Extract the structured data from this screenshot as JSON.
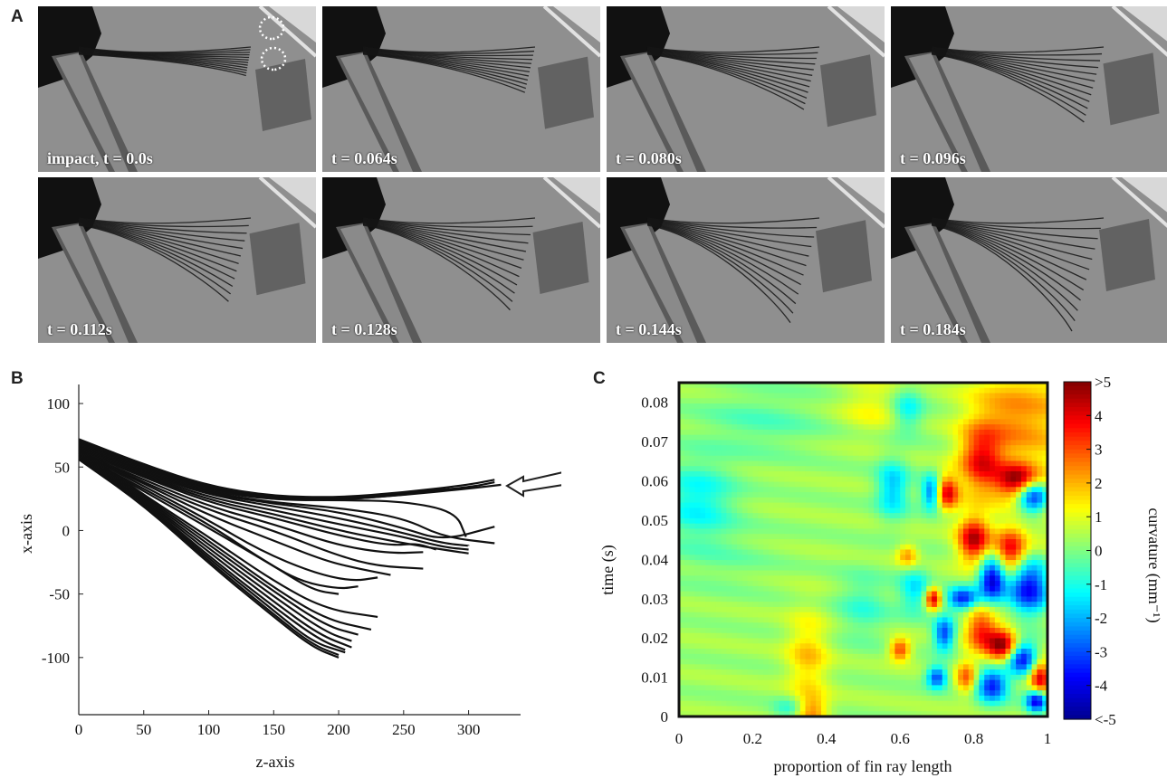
{
  "figure": {
    "panel_a": {
      "letter": "A",
      "frames": [
        {
          "caption": "impact, t = 0.0s",
          "row": 0,
          "col": 0,
          "phase": 0.0
        },
        {
          "caption": "t = 0.064s",
          "row": 0,
          "col": 1,
          "phase": 0.2
        },
        {
          "caption": "t = 0.080s",
          "row": 0,
          "col": 2,
          "phase": 0.4
        },
        {
          "caption": "t = 0.096s",
          "row": 0,
          "col": 3,
          "phase": 0.55
        },
        {
          "caption": "t = 0.112s",
          "row": 1,
          "col": 0,
          "phase": 0.65
        },
        {
          "caption": "t = 0.128s",
          "row": 1,
          "col": 1,
          "phase": 0.75
        },
        {
          "caption": "t = 0.144s",
          "row": 1,
          "col": 2,
          "phase": 0.9
        },
        {
          "caption": "t = 0.184s",
          "row": 1,
          "col": 3,
          "phase": 1.0
        }
      ]
    },
    "panel_b": {
      "letter": "B"
    },
    "panel_c": {
      "letter": "C"
    }
  },
  "chart_data": [
    {
      "panel": "B",
      "type": "line",
      "xlabel": "z-axis",
      "ylabel": "x-axis",
      "xlim": [
        0,
        340
      ],
      "ylim": [
        -145,
        115
      ],
      "xticks": [
        0,
        50,
        100,
        150,
        200,
        250,
        300
      ],
      "yticks": [
        100,
        50,
        0,
        -50,
        -100
      ],
      "annotation": "arrow pointing left at upper ray tips (impact location)",
      "series": [
        {
          "x": [
            0,
            50,
            100,
            150,
            200,
            250,
            300,
            320
          ],
          "y": [
            72,
            52,
            35,
            27,
            26,
            30,
            36,
            40
          ]
        },
        {
          "x": [
            0,
            50,
            100,
            150,
            200,
            250,
            300,
            320
          ],
          "y": [
            71,
            51,
            34,
            26,
            25,
            29,
            34,
            38
          ]
        },
        {
          "x": [
            0,
            50,
            100,
            150,
            200,
            250,
            300,
            325
          ],
          "y": [
            70,
            50,
            33,
            25,
            24,
            28,
            33,
            36
          ]
        },
        {
          "x": [
            0,
            50,
            100,
            150,
            200,
            250,
            290
          ],
          "y": [
            69,
            49,
            32,
            25,
            25,
            30,
            33
          ]
        },
        {
          "x": [
            0,
            50,
            100,
            150,
            200,
            250,
            300,
            305
          ],
          "y": [
            68,
            48,
            32,
            24,
            24,
            28,
            34,
            35
          ]
        },
        {
          "x": [
            0,
            50,
            100,
            150,
            200,
            250,
            290,
            298
          ],
          "y": [
            68,
            48,
            31,
            24,
            24,
            23,
            15,
            -5
          ]
        },
        {
          "x": [
            0,
            50,
            100,
            150,
            200,
            250,
            280,
            320
          ],
          "y": [
            67,
            47,
            30,
            22,
            18,
            10,
            -5,
            -10
          ]
        },
        {
          "x": [
            0,
            50,
            100,
            150,
            200,
            250,
            280,
            320
          ],
          "y": [
            66,
            46,
            29,
            21,
            15,
            2,
            -8,
            3
          ]
        },
        {
          "x": [
            0,
            50,
            100,
            150,
            200,
            250,
            280,
            300
          ],
          "y": [
            66,
            45,
            28,
            19,
            10,
            -2,
            -10,
            -12
          ]
        },
        {
          "x": [
            0,
            50,
            100,
            150,
            200,
            250,
            280,
            300
          ],
          "y": [
            65,
            44,
            26,
            16,
            5,
            -5,
            -13,
            -15
          ]
        },
        {
          "x": [
            0,
            50,
            100,
            150,
            200,
            250,
            280,
            300
          ],
          "y": [
            64,
            43,
            24,
            13,
            0,
            -10,
            -15,
            -18
          ]
        },
        {
          "x": [
            0,
            50,
            100,
            150,
            200,
            240,
            260,
            275
          ],
          "y": [
            63,
            42,
            22,
            10,
            -4,
            -12,
            -10,
            -15
          ]
        },
        {
          "x": [
            0,
            50,
            100,
            150,
            200,
            240,
            265
          ],
          "y": [
            62,
            40,
            19,
            5,
            -12,
            -18,
            -17
          ]
        },
        {
          "x": [
            0,
            50,
            100,
            150,
            200,
            230,
            265
          ],
          "y": [
            62,
            38,
            16,
            0,
            -20,
            -28,
            -30
          ]
        },
        {
          "x": [
            0,
            50,
            100,
            150,
            190,
            215,
            240
          ],
          "y": [
            61,
            37,
            12,
            -8,
            -24,
            -30,
            -35
          ]
        },
        {
          "x": [
            0,
            50,
            100,
            140,
            180,
            210,
            230
          ],
          "y": [
            61,
            35,
            8,
            -16,
            -33,
            -40,
            -37
          ]
        },
        {
          "x": [
            0,
            50,
            100,
            140,
            170,
            200,
            215
          ],
          "y": [
            60,
            33,
            5,
            -22,
            -40,
            -46,
            -44
          ]
        },
        {
          "x": [
            0,
            50,
            100,
            150,
            180,
            200
          ],
          "y": [
            60,
            31,
            2,
            -28,
            -47,
            -50
          ]
        },
        {
          "x": [
            0,
            50,
            100,
            150,
            190,
            230
          ],
          "y": [
            64,
            28,
            -5,
            -40,
            -62,
            -68
          ]
        },
        {
          "x": [
            0,
            50,
            100,
            150,
            190,
            225
          ],
          "y": [
            63,
            27,
            -8,
            -45,
            -70,
            -78
          ]
        },
        {
          "x": [
            0,
            50,
            100,
            150,
            190,
            215
          ],
          "y": [
            62,
            26,
            -11,
            -48,
            -75,
            -82
          ]
        },
        {
          "x": [
            0,
            50,
            100,
            150,
            190,
            210
          ],
          "y": [
            61,
            25,
            -14,
            -52,
            -80,
            -87
          ]
        },
        {
          "x": [
            0,
            50,
            100,
            150,
            185,
            210
          ],
          "y": [
            60,
            24,
            -17,
            -56,
            -82,
            -92
          ]
        },
        {
          "x": [
            0,
            50,
            100,
            150,
            185,
            205
          ],
          "y": [
            59,
            23,
            -20,
            -60,
            -86,
            -94
          ]
        },
        {
          "x": [
            0,
            50,
            100,
            150,
            180,
            205
          ],
          "y": [
            58,
            22,
            -22,
            -63,
            -88,
            -96
          ]
        },
        {
          "x": [
            0,
            50,
            100,
            150,
            180,
            200
          ],
          "y": [
            57,
            21,
            -24,
            -66,
            -90,
            -98
          ]
        },
        {
          "x": [
            0,
            50,
            100,
            150,
            180,
            200
          ],
          "y": [
            56,
            20,
            -26,
            -68,
            -92,
            -100
          ]
        }
      ]
    },
    {
      "panel": "C",
      "type": "heatmap",
      "xlabel": "proportion of fin ray length",
      "ylabel": "time (s)",
      "colorbar_label": "curvature (mm⁻¹)",
      "xlim": [
        0,
        1
      ],
      "ylim": [
        0,
        0.085
      ],
      "xticks": [
        "0",
        "0.2",
        "0.4",
        "0.6",
        "0.8",
        "1"
      ],
      "yticks": [
        "0.08",
        "0.07",
        "0.06",
        "0.05",
        "0.04",
        "0.03",
        "0.02",
        "0.01",
        "0"
      ],
      "clim": [
        -5,
        5
      ],
      "cticks": [
        ">5",
        "4",
        "3",
        "2",
        "1",
        "0",
        "-1",
        "-2",
        "-3",
        "-4",
        "<-5"
      ],
      "colors": [
        "#00008f",
        "#0000ff",
        "#0080ff",
        "#00ffff",
        "#80ff80",
        "#ffff00",
        "#ff8000",
        "#ff0000",
        "#800000"
      ],
      "background_value": 0.3,
      "blobs": [
        {
          "x": 0.05,
          "t": 0.055,
          "v": -1.6,
          "sx": 0.07,
          "st": 0.007
        },
        {
          "x": 0.22,
          "t": 0.075,
          "v": -0.7,
          "sx": 0.12,
          "st": 0.006
        },
        {
          "x": 0.12,
          "t": 0.04,
          "v": -0.4,
          "sx": 0.1,
          "st": 0.006
        },
        {
          "x": 0.5,
          "t": 0.028,
          "v": -1.0,
          "sx": 0.05,
          "st": 0.006
        },
        {
          "x": 0.52,
          "t": 0.079,
          "v": 0.9,
          "sx": 0.06,
          "st": 0.005
        },
        {
          "x": 0.62,
          "t": 0.078,
          "v": -1.6,
          "sx": 0.03,
          "st": 0.004
        },
        {
          "x": 0.64,
          "t": 0.032,
          "v": -1.8,
          "sx": 0.03,
          "st": 0.004
        },
        {
          "x": 0.58,
          "t": 0.058,
          "v": -2.2,
          "sx": 0.03,
          "st": 0.005
        },
        {
          "x": 0.35,
          "t": 0.015,
          "v": 1.5,
          "sx": 0.04,
          "st": 0.008
        },
        {
          "x": 0.36,
          "t": 0.001,
          "v": 2.0,
          "sx": 0.03,
          "st": 0.003
        },
        {
          "x": 0.3,
          "t": 0.002,
          "v": -1.2,
          "sx": 0.03,
          "st": 0.002
        },
        {
          "x": 0.72,
          "t": 0.057,
          "v": 4.5,
          "sx": 0.025,
          "st": 0.003
        },
        {
          "x": 0.69,
          "t": 0.057,
          "v": -4.5,
          "sx": 0.02,
          "st": 0.003
        },
        {
          "x": 0.82,
          "t": 0.065,
          "v": 3.0,
          "sx": 0.04,
          "st": 0.006
        },
        {
          "x": 0.92,
          "t": 0.06,
          "v": 4.0,
          "sx": 0.04,
          "st": 0.003
        },
        {
          "x": 0.96,
          "t": 0.056,
          "v": -4.5,
          "sx": 0.03,
          "st": 0.003
        },
        {
          "x": 0.8,
          "t": 0.045,
          "v": 4.0,
          "sx": 0.03,
          "st": 0.004
        },
        {
          "x": 0.9,
          "t": 0.042,
          "v": 3.5,
          "sx": 0.03,
          "st": 0.004
        },
        {
          "x": 0.85,
          "t": 0.035,
          "v": -4.8,
          "sx": 0.025,
          "st": 0.004
        },
        {
          "x": 0.95,
          "t": 0.033,
          "v": -4.5,
          "sx": 0.04,
          "st": 0.005
        },
        {
          "x": 0.77,
          "t": 0.03,
          "v": -4.0,
          "sx": 0.03,
          "st": 0.002
        },
        {
          "x": 0.69,
          "t": 0.03,
          "v": 4.0,
          "sx": 0.015,
          "st": 0.002
        },
        {
          "x": 0.72,
          "t": 0.021,
          "v": -3.5,
          "sx": 0.02,
          "st": 0.003
        },
        {
          "x": 0.82,
          "t": 0.022,
          "v": 3.0,
          "sx": 0.03,
          "st": 0.004
        },
        {
          "x": 0.88,
          "t": 0.018,
          "v": 4.5,
          "sx": 0.03,
          "st": 0.003
        },
        {
          "x": 0.93,
          "t": 0.015,
          "v": -4.5,
          "sx": 0.03,
          "st": 0.003
        },
        {
          "x": 0.98,
          "t": 0.01,
          "v": 4.0,
          "sx": 0.02,
          "st": 0.003
        },
        {
          "x": 0.85,
          "t": 0.008,
          "v": -4.0,
          "sx": 0.03,
          "st": 0.003
        },
        {
          "x": 0.78,
          "t": 0.01,
          "v": 2.5,
          "sx": 0.02,
          "st": 0.003
        },
        {
          "x": 0.7,
          "t": 0.01,
          "v": -3.5,
          "sx": 0.02,
          "st": 0.002
        },
        {
          "x": 0.97,
          "t": 0.004,
          "v": -4.5,
          "sx": 0.02,
          "st": 0.002
        },
        {
          "x": 0.9,
          "t": 0.075,
          "v": 1.5,
          "sx": 0.08,
          "st": 0.008
        },
        {
          "x": 0.62,
          "t": 0.041,
          "v": 2.0,
          "sx": 0.02,
          "st": 0.002
        },
        {
          "x": 0.6,
          "t": 0.017,
          "v": 3.0,
          "sx": 0.02,
          "st": 0.002
        }
      ]
    }
  ]
}
